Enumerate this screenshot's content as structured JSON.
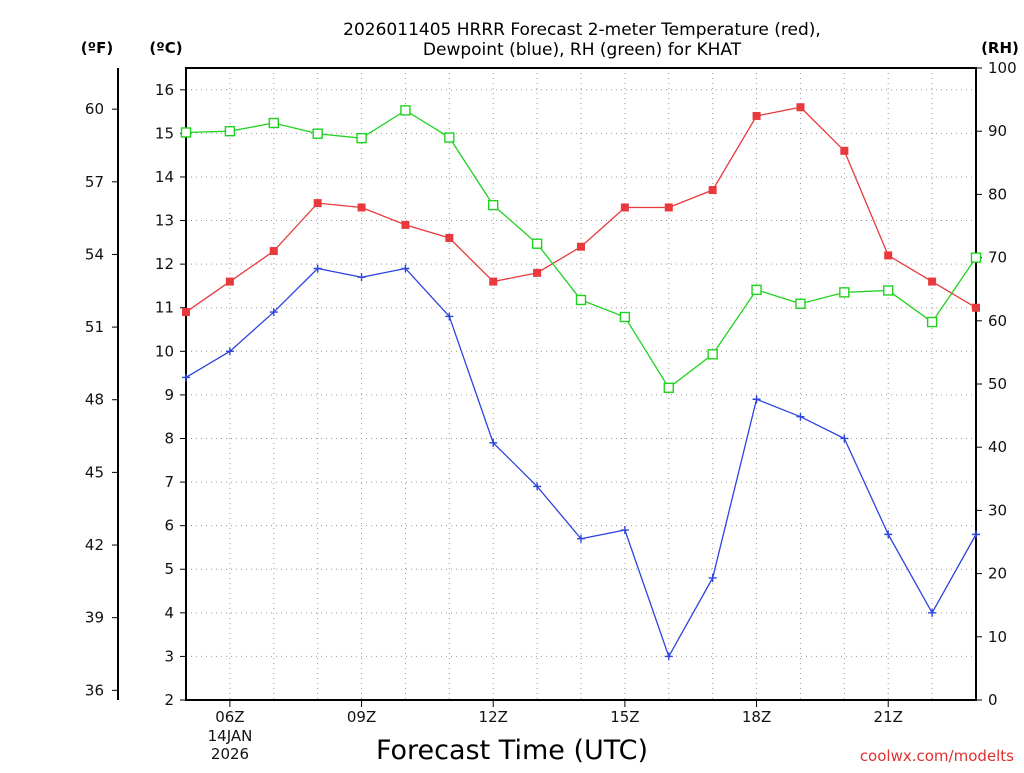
{
  "chart_data": {
    "type": "line",
    "title_line1": "2026011405 HRRR Forecast 2-meter Temperature (red),",
    "title_line2": "Dewpoint (blue), RH (green) for KHAT",
    "xlabel": "Forecast Time (UTC)",
    "credit": "coolwx.com/modelts",
    "left_unit_f": "(ºF)",
    "left_unit_c": "(ºC)",
    "right_unit": "(RH)",
    "x_range_hours": [
      5,
      23
    ],
    "x_ticks": [
      {
        "hour": 6,
        "label": "06Z"
      },
      {
        "hour": 9,
        "label": "09Z"
      },
      {
        "hour": 12,
        "label": "12Z"
      },
      {
        "hour": 15,
        "label": "15Z"
      },
      {
        "hour": 18,
        "label": "18Z"
      },
      {
        "hour": 21,
        "label": "21Z"
      }
    ],
    "date_label_line1": "14JAN",
    "date_label_line2": "2026",
    "celsius_axis": {
      "range": [
        2,
        16.5
      ],
      "ticks": [
        2,
        3,
        4,
        5,
        6,
        7,
        8,
        9,
        10,
        11,
        12,
        13,
        14,
        15,
        16
      ]
    },
    "fahrenheit_ticks": [
      36,
      39,
      42,
      45,
      48,
      51,
      54,
      57,
      60
    ],
    "rh_axis": {
      "range": [
        0,
        100
      ],
      "ticks": [
        0,
        10,
        20,
        30,
        40,
        50,
        60,
        70,
        80,
        90,
        100
      ]
    },
    "hours": [
      5,
      6,
      7,
      8,
      9,
      10,
      11,
      12,
      13,
      14,
      15,
      16,
      17,
      18,
      19,
      20,
      21,
      22,
      23
    ],
    "series": [
      {
        "name": "Temperature",
        "unit": "C",
        "color": "#e8393d",
        "marker": "filled-square",
        "values": [
          10.9,
          11.6,
          12.3,
          13.4,
          13.3,
          12.9,
          12.6,
          11.6,
          11.8,
          12.4,
          13.3,
          13.3,
          13.7,
          15.4,
          15.6,
          14.6,
          12.2,
          11.6,
          11.0
        ]
      },
      {
        "name": "Dewpoint",
        "unit": "C",
        "color": "#2d44e0",
        "marker": "plus",
        "values": [
          9.4,
          10.0,
          10.9,
          11.9,
          11.7,
          11.9,
          10.8,
          7.9,
          6.9,
          5.7,
          5.9,
          3.0,
          4.8,
          8.9,
          8.5,
          8.0,
          5.8,
          4.0,
          5.8
        ]
      },
      {
        "name": "RH",
        "unit": "%",
        "color": "#1ed31e",
        "marker": "open-square",
        "values": [
          89.8,
          90.0,
          91.3,
          89.6,
          88.9,
          93.3,
          89.0,
          78.3,
          72.2,
          63.3,
          60.6,
          49.4,
          54.7,
          64.9,
          62.7,
          64.5,
          64.8,
          59.8,
          70.0
        ]
      }
    ]
  }
}
